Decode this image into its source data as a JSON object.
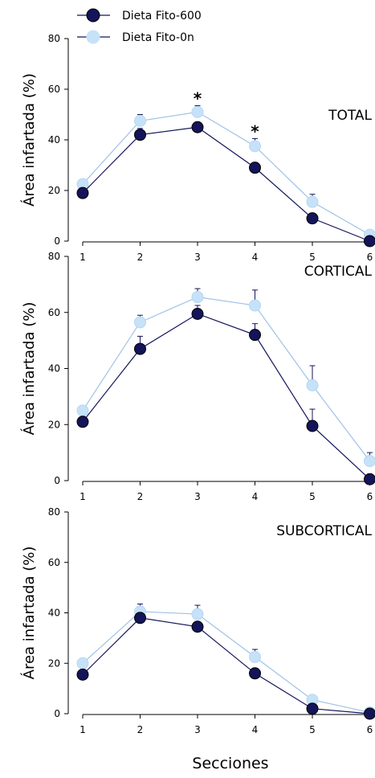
{
  "legend": [
    {
      "label": "Dieta Fito-600",
      "color": "#14145a"
    },
    {
      "label": "Dieta Fito-0n",
      "color": "#c6e2f8"
    }
  ],
  "xlabel": "Secciones",
  "chart_data": [
    {
      "type": "line",
      "title": "TOTAL",
      "ylabel": "Área infartada (%)",
      "x": [
        1,
        2,
        3,
        4,
        5,
        6
      ],
      "ylim": [
        0,
        80
      ],
      "yticks": [
        0,
        20,
        40,
        60,
        80
      ],
      "series": [
        {
          "name": "Dieta Fito-600",
          "color": "#14145a",
          "values": [
            19,
            42,
            45,
            29,
            9,
            0
          ],
          "errors": [
            1.5,
            2.5,
            1.5,
            1.5,
            1.5,
            0.5
          ]
        },
        {
          "name": "Dieta Fito-0n",
          "color": "#c6e2f8",
          "values": [
            22.5,
            47.5,
            51,
            37.5,
            15.5,
            2.5
          ],
          "errors": [
            1,
            2.5,
            2.5,
            3,
            3,
            1
          ]
        }
      ],
      "annotations": [
        {
          "x": 3,
          "text": "*"
        },
        {
          "x": 4,
          "text": "*"
        }
      ]
    },
    {
      "type": "line",
      "title": "CORTICAL",
      "ylabel": "Área infartada (%)",
      "x": [
        1,
        2,
        3,
        4,
        5,
        6
      ],
      "ylim": [
        0,
        80
      ],
      "yticks": [
        0,
        20,
        40,
        60,
        80
      ],
      "series": [
        {
          "name": "Dieta Fito-600",
          "color": "#14145a",
          "values": [
            21,
            47,
            59.5,
            52,
            19.5,
            0.5
          ],
          "errors": [
            1,
            4.5,
            3,
            4,
            6,
            0.5
          ]
        },
        {
          "name": "Dieta Fito-0n",
          "color": "#c6e2f8",
          "values": [
            25,
            56.5,
            65.5,
            62.5,
            34,
            7
          ],
          "errors": [
            1,
            2.5,
            3,
            5.5,
            7,
            3
          ]
        }
      ],
      "annotations": []
    },
    {
      "type": "line",
      "title": "SUBCORTICAL",
      "ylabel": "Área infartada (%)",
      "x": [
        1,
        2,
        3,
        4,
        5,
        6
      ],
      "ylim": [
        0,
        80
      ],
      "yticks": [
        0,
        20,
        40,
        60,
        80
      ],
      "series": [
        {
          "name": "Dieta Fito-600",
          "color": "#14145a",
          "values": [
            15.5,
            38,
            34.5,
            16,
            2,
            0
          ],
          "errors": [
            1,
            1.5,
            1.5,
            1,
            0.5,
            0.5
          ]
        },
        {
          "name": "Dieta Fito-0n",
          "color": "#c6e2f8",
          "values": [
            20,
            40.5,
            39.5,
            22.5,
            5.5,
            0.5
          ],
          "errors": [
            1,
            3,
            3.5,
            3,
            1,
            0.5
          ]
        }
      ],
      "annotations": []
    }
  ]
}
